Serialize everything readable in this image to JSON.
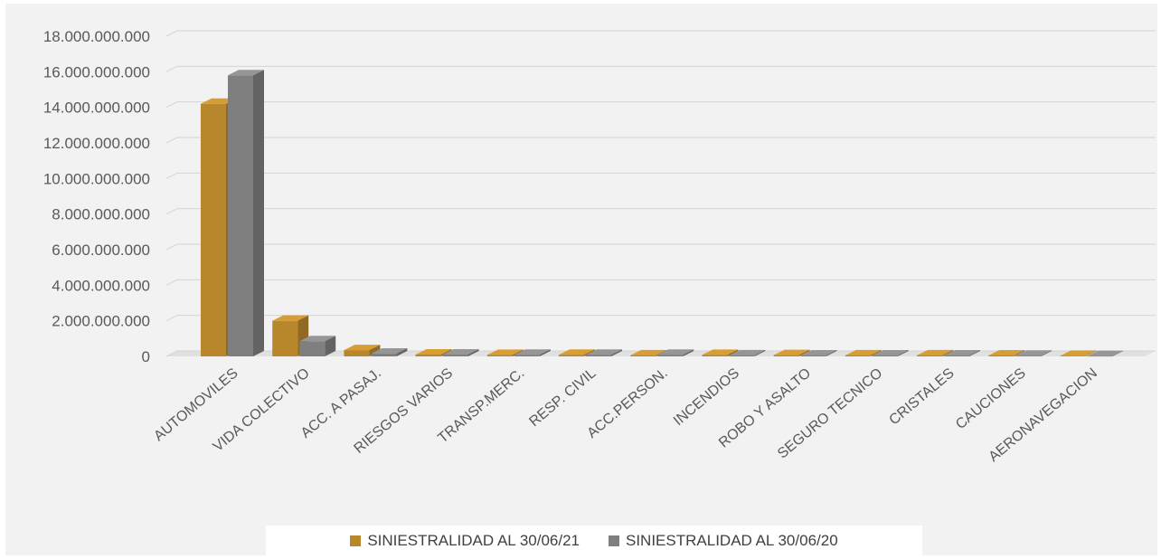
{
  "chart_data": {
    "type": "bar",
    "style": "3d-clustered-column",
    "categories": [
      "AUTOMOVILES",
      "VIDA COLECTIVO",
      "ACC. A PASAJ.",
      "RIESGOS VARIOS",
      "TRANSP.MERC.",
      "RESP. CIVIL",
      "ACC.PERSON.",
      "INCENDIOS",
      "ROBO Y ASALTO",
      "SEGURO TECNICO",
      "CRISTALES",
      "CAUCIONES",
      "AERONAVEGACION"
    ],
    "series": [
      {
        "name": "SINIESTRALIDAD AL 30/06/21",
        "color": "#b8862b",
        "values": [
          14200000000,
          2000000000,
          350000000,
          100000000,
          80000000,
          90000000,
          60000000,
          80000000,
          70000000,
          60000000,
          60000000,
          50000000,
          30000000
        ]
      },
      {
        "name": "SINIESTRALIDAD AL 30/06/20",
        "color": "#7f7f7f",
        "values": [
          15800000000,
          850000000,
          150000000,
          100000000,
          90000000,
          90000000,
          90000000,
          60000000,
          50000000,
          50000000,
          50000000,
          40000000,
          20000000
        ]
      }
    ],
    "y_ticks": [
      "18.000.000.000",
      "16.000.000.000",
      "14.000.000.000",
      "12.000.000.000",
      "10.000.000.000",
      "8.000.000.000",
      "6.000.000.000",
      "4.000.000.000",
      "2.000.000.000",
      "0"
    ],
    "ylim": [
      0,
      18000000000
    ],
    "grid": true,
    "legend_position": "bottom"
  }
}
